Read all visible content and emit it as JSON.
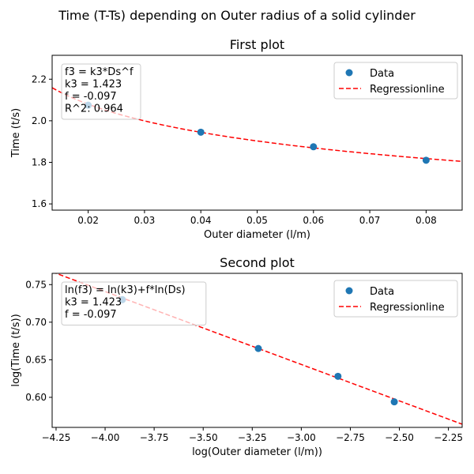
{
  "figure": {
    "suptitle": "Time (T-Ts) depending on Outer radius of a solid cylinder"
  },
  "chart_data": [
    {
      "type": "scatter",
      "title": "First plot",
      "xlabel": "Outer diameter (l/m)",
      "ylabel": "Time (t/s)",
      "xlim": [
        0.0136,
        0.0864
      ],
      "ylim": [
        1.57,
        2.315
      ],
      "xticks": [
        0.02,
        0.03,
        0.04,
        0.05,
        0.06,
        0.07,
        0.08
      ],
      "xtick_labels": [
        "0.02",
        "0.03",
        "0.04",
        "0.05",
        "0.06",
        "0.07",
        "0.08"
      ],
      "yticks": [
        1.6,
        1.8,
        2.0,
        2.2
      ],
      "ytick_labels": [
        "1.6",
        "1.8",
        "2.0",
        "2.2"
      ],
      "legend": {
        "position": "top-right",
        "entries": [
          "Data",
          "Regressionline"
        ]
      },
      "annotation": [
        "f3 = k3*Ds^f",
        "k3 = 1.423",
        "f = -0.097",
        "R^2: 0.964"
      ],
      "series": [
        {
          "name": "Data",
          "kind": "scatter",
          "color": "#1f77b4",
          "x": [
            0.02,
            0.04,
            0.06,
            0.08
          ],
          "y": [
            2.075,
            1.945,
            1.875,
            1.81
          ]
        },
        {
          "name": "Regressionline",
          "kind": "line",
          "style": "dashed",
          "color": "#ff0000",
          "model": "power",
          "k": 1.423,
          "f": -0.097
        }
      ]
    },
    {
      "type": "scatter",
      "title": "Second plot",
      "xlabel": "log(Outer diameter (l/m))",
      "ylabel": "log(Time (t/s))",
      "xlim": [
        -4.27,
        -2.18
      ],
      "ylim": [
        0.56,
        0.765
      ],
      "xticks": [
        -4.25,
        -4.0,
        -3.75,
        -3.5,
        -3.25,
        -3.0,
        -2.75,
        -2.5,
        -2.25
      ],
      "xtick_labels": [
        "−4.25",
        "−4.00",
        "−3.75",
        "−3.50",
        "−3.25",
        "−3.00",
        "−2.75",
        "−2.50",
        "−2.25"
      ],
      "yticks": [
        0.6,
        0.65,
        0.7,
        0.75
      ],
      "ytick_labels": [
        "0.60",
        "0.65",
        "0.70",
        "0.75"
      ],
      "legend": {
        "position": "top-right",
        "entries": [
          "Data",
          "Regressionline"
        ]
      },
      "annotation": [
        "ln(f3) = ln(k3)+f*ln(Ds)",
        "k3 = 1.423",
        "f = -0.097"
      ],
      "series": [
        {
          "name": "Data",
          "kind": "scatter",
          "color": "#1f77b4",
          "x": [
            -3.912,
            -3.219,
            -2.813,
            -2.526
          ],
          "y": [
            0.73,
            0.665,
            0.628,
            0.594
          ]
        },
        {
          "name": "Regressionline",
          "kind": "line",
          "style": "dashed",
          "color": "#ff0000",
          "model": "linear",
          "k": 1.423,
          "f": -0.097
        }
      ]
    }
  ]
}
